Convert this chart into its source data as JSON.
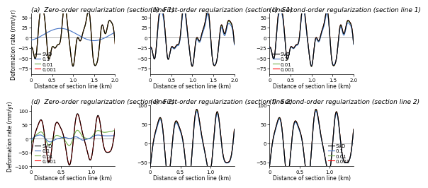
{
  "titles": [
    "(a)  Zero-order regularization (section line 1)",
    "(b)  First-order regularization (section line 1)",
    "(c)  Second-order regularization (section line 1)",
    "(d)  Zero-order regularization (section line 2)",
    "(e)  First-order regularization (section line 2)",
    "(f)  Second-order regularization (section line 2)"
  ],
  "ylabel": "Deformation rate (mm/yr)",
  "xlabel": "Distance of section line (km)",
  "legend_labels": [
    "SVD",
    "0.1",
    "0.01",
    "0.001"
  ],
  "legend_colors": [
    "#000000",
    "#4472c4",
    "#70ad47",
    "#ff0000"
  ],
  "background": "#ffffff",
  "title_fontsize": 6.5,
  "axis_fontsize": 5.5,
  "tick_fontsize": 5.0,
  "legend_fontsize": 5.0
}
